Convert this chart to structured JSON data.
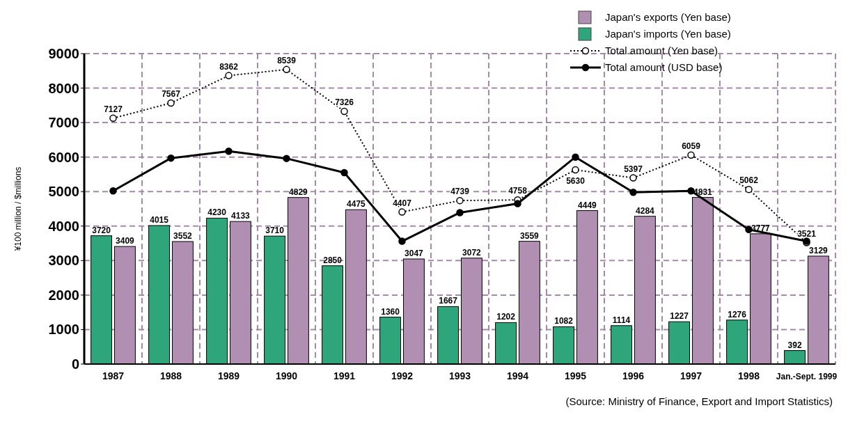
{
  "chart_data": {
    "type": "bar",
    "ylabel": "¥100 million / $millions",
    "categories": [
      "1987",
      "1988",
      "1989",
      "1990",
      "1991",
      "1992",
      "1993",
      "1994",
      "1995",
      "1996",
      "1997",
      "1998",
      "Jan.-Sept. 1999"
    ],
    "series": [
      {
        "name": "Japan's imports (Yen base)",
        "color": "#2fa57b",
        "values": [
          3720,
          4015,
          4230,
          3710,
          2850,
          1360,
          1667,
          1202,
          1082,
          1114,
          1227,
          1276,
          392
        ],
        "value_labels": [
          "3720",
          "4015",
          "4230",
          "3710",
          "2850",
          "1360",
          "1667",
          "1202",
          "1082",
          "1114",
          "1227",
          "1276",
          "392"
        ]
      },
      {
        "name": "Japan's exports (Yen base)",
        "color": "#b08fb3",
        "values": [
          3409,
          3552,
          4133,
          4829,
          4475,
          3047,
          3072,
          3559,
          4449,
          4284,
          4831,
          3777,
          3129
        ],
        "value_labels": [
          "3409",
          "3552",
          "4133",
          "4829",
          "4475",
          "3047",
          "3072",
          "3559",
          "4449",
          "4284",
          "4831",
          "3777",
          "3129"
        ]
      },
      {
        "name": "Total amount (Yen base)",
        "type": "line",
        "color": "#000000",
        "line_style": "dotted",
        "marker": "circle",
        "values": [
          7127,
          7567,
          8362,
          8539,
          7326,
          4407,
          4739,
          4758,
          5630,
          5397,
          6059,
          5062,
          3521
        ],
        "value_labels": [
          "7127",
          "7567",
          "8362",
          "8539",
          "7326",
          "4407",
          "4739",
          "4758",
          "5630",
          "5397",
          "6059",
          "5062",
          "3521"
        ]
      },
      {
        "name": "Total amount (USD base)",
        "type": "line",
        "color": "#000000",
        "line_style": "solid",
        "marker": "circle",
        "values": [
          5020,
          5970,
          6170,
          5960,
          5550,
          3560,
          4390,
          4650,
          6000,
          4980,
          5020,
          3900,
          3560
        ]
      }
    ],
    "ylim": [
      0,
      9000
    ],
    "yticks": [
      0,
      1000,
      2000,
      3000,
      4000,
      5000,
      6000,
      7000,
      8000,
      9000
    ],
    "grid": true,
    "legend": "top right",
    "annotations": [
      "(Source: Ministry of Finance, Export and Import Statistics)"
    ]
  }
}
